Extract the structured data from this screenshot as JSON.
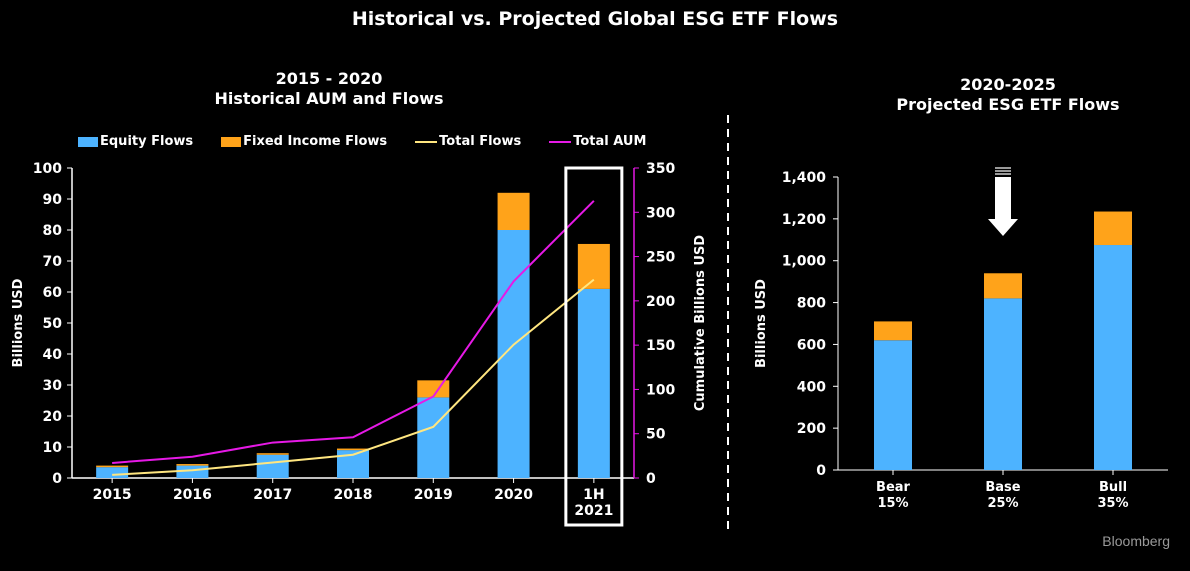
{
  "title": "Historical vs. Projected Global ESG ETF Flows",
  "left_panel": {
    "heading_line1": "2015 - 2020",
    "heading_line2": "Historical AUM and Flows"
  },
  "right_panel": {
    "heading_line1": "2020-2025",
    "heading_line2": "Projected ESG ETF Flows"
  },
  "legend": {
    "equity": "Equity Flows",
    "fixed_income": "Fixed Income Flows",
    "total_flows": "Total Flows",
    "total_aum": "Total AUM"
  },
  "brand": "Bloomberg",
  "colors": {
    "equity": "#4db3ff",
    "fixed_income": "#ffa31a",
    "total_flows": "#ffe680",
    "total_aum": "#e619e6",
    "axis": "#ffffff",
    "background": "#000000"
  },
  "chart_data": [
    {
      "type": "bar",
      "stacked": true,
      "categories": [
        "2015",
        "2016",
        "2017",
        "2018",
        "2019",
        "2020",
        "1H\n2021"
      ],
      "series": [
        {
          "name": "Equity Flows",
          "axis": "left",
          "values": [
            3.5,
            4,
            7.5,
            9,
            26,
            80,
            61
          ]
        },
        {
          "name": "Fixed Income Flows",
          "axis": "left",
          "values": [
            0.5,
            0.5,
            0.5,
            0.5,
            5.5,
            12,
            14.5
          ]
        },
        {
          "name": "Total Flows",
          "type": "line",
          "axis": "left",
          "values": [
            1,
            2.5,
            5,
            7.5,
            16.5,
            43,
            64
          ]
        },
        {
          "name": "Total AUM",
          "type": "line",
          "axis": "right",
          "values": [
            17,
            24,
            40,
            46,
            92,
            222,
            313
          ]
        }
      ],
      "ylabel": "Billions USD",
      "ylim": [
        0,
        100
      ],
      "yticks": [
        0,
        10,
        20,
        30,
        40,
        50,
        60,
        70,
        80,
        90,
        100
      ],
      "y2label": "Cumulative Billions USD",
      "y2lim": [
        0,
        350
      ],
      "y2ticks": [
        0,
        50,
        100,
        150,
        200,
        250,
        300,
        350
      ],
      "highlighted_category": "1H\n2021"
    },
    {
      "type": "bar",
      "stacked": true,
      "categories": [
        "Bear\n15%",
        "Base\n25%",
        "Bull\n35%"
      ],
      "series": [
        {
          "name": "Equity Flows",
          "values": [
            620,
            820,
            1075
          ]
        },
        {
          "name": "Fixed Income Flows",
          "values": [
            90,
            120,
            160
          ]
        }
      ],
      "ylabel": "Billions USD",
      "ylim": [
        0,
        1400
      ],
      "yticks": [
        "0",
        "200",
        "400",
        "600",
        "800",
        "1,000",
        "1,200",
        "1,400"
      ],
      "marked_category": "Base\n25%"
    }
  ]
}
